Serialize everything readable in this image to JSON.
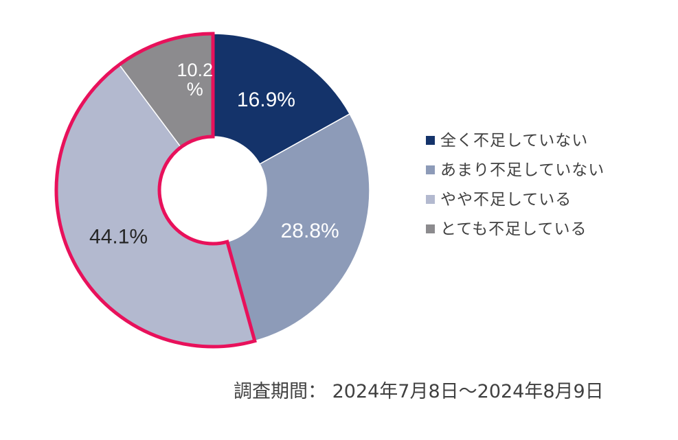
{
  "chart_data": {
    "type": "pie",
    "style": "donut",
    "slices": [
      {
        "label": "全く不足していない",
        "value": 16.9,
        "display": "16.9%",
        "color": "#14336a",
        "text_color": "#ffffff"
      },
      {
        "label": "あまり不足していない",
        "value": 28.8,
        "display": "28.8%",
        "color": "#8d9bb8",
        "text_color": "#ffffff"
      },
      {
        "label": "やや不足している",
        "value": 44.1,
        "display": "44.1%",
        "color": "#b3b9cf",
        "text_color": "#262626"
      },
      {
        "label": "とても不足している",
        "value": 10.2,
        "display_lines": [
          "10.2",
          "%"
        ],
        "color": "#8c8b8e",
        "text_color": "#ffffff"
      }
    ],
    "highlight": {
      "slices": [
        "やや不足している",
        "とても不足している"
      ],
      "color": "#e8115b"
    },
    "legend_position": "right"
  },
  "legend": {
    "items": [
      {
        "label": "全く不足していない",
        "color": "#14336a"
      },
      {
        "label": "あまり不足していない",
        "color": "#8d9bb8"
      },
      {
        "label": "やや不足している",
        "color": "#b3b9cf"
      },
      {
        "label": "とても不足している",
        "color": "#8c8b8e"
      }
    ]
  },
  "footnote": "調査期間： 2024年7月8日～2024年8月9日"
}
